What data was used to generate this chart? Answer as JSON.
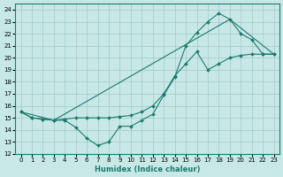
{
  "xlabel": "Humidex (Indice chaleur)",
  "background_color": "#c8e8e8",
  "line_color": "#1a7a6e",
  "grid_color": "#a0c8c8",
  "xlim": [
    -0.5,
    23.5
  ],
  "ylim": [
    12,
    24.5
  ],
  "yticks": [
    12,
    13,
    14,
    15,
    16,
    17,
    18,
    19,
    20,
    21,
    22,
    23,
    24
  ],
  "xticks": [
    0,
    1,
    2,
    3,
    4,
    5,
    6,
    7,
    8,
    9,
    10,
    11,
    12,
    13,
    14,
    15,
    16,
    17,
    18,
    19,
    20,
    21,
    22,
    23
  ],
  "line1_x": [
    0,
    1,
    2,
    3,
    4,
    5,
    6,
    7,
    8,
    9,
    10,
    11,
    12,
    13,
    14,
    15,
    16,
    17,
    18,
    19,
    20,
    21,
    22,
    23
  ],
  "line1_y": [
    15.5,
    15.0,
    14.9,
    14.8,
    14.8,
    14.2,
    13.3,
    12.7,
    13.0,
    14.3,
    14.3,
    14.8,
    15.3,
    16.9,
    18.4,
    21.0,
    22.1,
    23.0,
    23.7,
    23.2,
    22.0,
    21.5,
    20.3,
    20.3
  ],
  "line2_x": [
    0,
    1,
    2,
    3,
    4,
    5,
    6,
    7,
    8,
    9,
    10,
    11,
    12,
    13,
    14,
    15,
    16,
    17,
    18,
    19,
    20,
    21,
    22,
    23
  ],
  "line2_y": [
    15.5,
    15.0,
    14.9,
    14.8,
    14.9,
    15.0,
    15.0,
    15.0,
    15.0,
    15.1,
    15.2,
    15.5,
    16.0,
    17.0,
    18.5,
    19.5,
    20.5,
    19.0,
    19.5,
    20.0,
    20.2,
    20.3,
    20.3,
    20.3
  ],
  "line3_x": [
    0,
    3,
    19,
    23
  ],
  "line3_y": [
    15.5,
    14.8,
    23.2,
    20.3
  ]
}
